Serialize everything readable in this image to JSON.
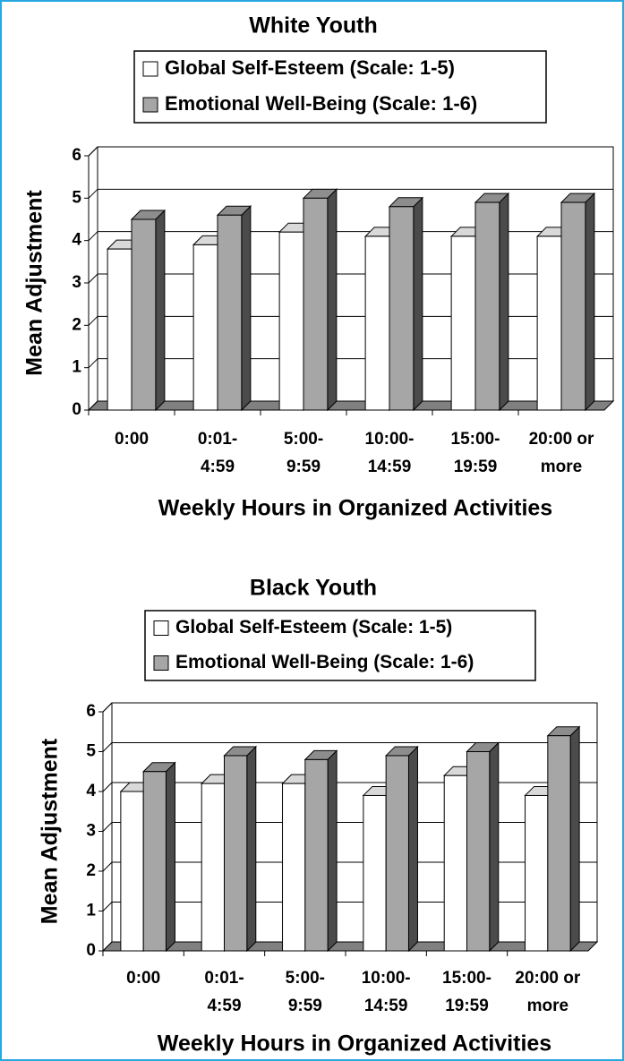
{
  "chart_data": [
    {
      "type": "bar3d",
      "title": "White Youth",
      "xlabel": "Weekly Hours in Organized Activities",
      "ylabel": "Mean Adjustment",
      "categories": [
        "0:00",
        "0:01-\n4:59",
        "5:00-\n9:59",
        "10:00-\n14:59",
        "15:00-\n19:59",
        "20:00 or\nmore"
      ],
      "series": [
        {
          "name": "Global Self-Esteem (Scale: 1-5)",
          "color": "#ffffff",
          "values": [
            3.8,
            3.9,
            4.2,
            4.1,
            4.1,
            4.1
          ]
        },
        {
          "name": "Emotional Well-Being (Scale: 1-6)",
          "color": "#a6a6a6",
          "values": [
            4.5,
            4.6,
            5.0,
            4.8,
            4.9,
            4.9
          ]
        }
      ],
      "ylim": [
        0,
        6
      ],
      "yticks": [
        0,
        1,
        2,
        3,
        4,
        5,
        6
      ],
      "grid": true
    },
    {
      "type": "bar3d",
      "title": "Black Youth",
      "xlabel": "Weekly Hours in Organized Activities",
      "ylabel": "Mean Adjustment",
      "categories": [
        "0:00",
        "0:01-\n4:59",
        "5:00-\n9:59",
        "10:00-\n14:59",
        "15:00-\n19:59",
        "20:00 or\nmore"
      ],
      "series": [
        {
          "name": "Global Self-Esteem (Scale: 1-5)",
          "color": "#ffffff",
          "values": [
            4.0,
            4.2,
            4.2,
            3.9,
            4.4,
            3.9
          ]
        },
        {
          "name": "Emotional Well-Being (Scale: 1-6)",
          "color": "#a6a6a6",
          "values": [
            4.5,
            4.9,
            4.8,
            4.9,
            5.0,
            5.4
          ]
        }
      ],
      "ylim": [
        0,
        6
      ],
      "yticks": [
        0,
        1,
        2,
        3,
        4,
        5,
        6
      ],
      "grid": true
    }
  ]
}
